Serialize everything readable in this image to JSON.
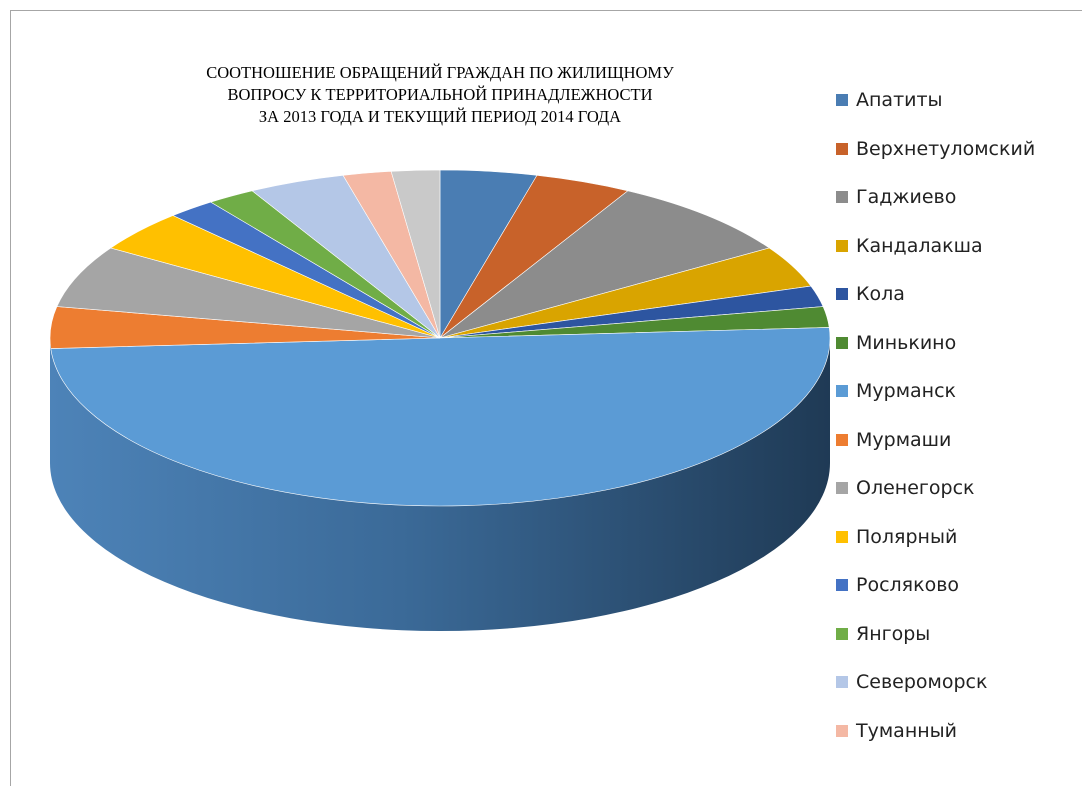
{
  "chart_data": {
    "type": "pie",
    "title_lines": [
      "СООТНОШЕНИЕ ОБРАЩЕНИЙ ГРАЖДАН ПО ЖИЛИЩНОМУ",
      "ВОПРОСУ К ТЕРРИТОРИАЛЬНОЙ ПРИНАДЛЕЖНОСТИ",
      "ЗА 2013 ГОДА И ТЕКУЩИЙ ПЕРИОД 2014 ГОДА"
    ],
    "legend_position": "right",
    "slices": [
      {
        "name": "Апатиты",
        "value": 4,
        "color": "#4a7db3"
      },
      {
        "name": "Верхнетуломский",
        "value": 4,
        "color": "#c8622a"
      },
      {
        "name": "Гаджиево",
        "value": 8,
        "color": "#8c8c8c"
      },
      {
        "name": "Кандалакша",
        "value": 4,
        "color": "#d9a400"
      },
      {
        "name": "Кола",
        "value": 2,
        "color": "#2d55a0"
      },
      {
        "name": "Минькино",
        "value": 2,
        "color": "#4f8a32"
      },
      {
        "name": "Мурманск",
        "value": 50,
        "color": "#5b9bd5"
      },
      {
        "name": "Мурмаши",
        "value": 4,
        "color": "#ed7d31"
      },
      {
        "name": "Оленегорск",
        "value": 6,
        "color": "#a5a5a5"
      },
      {
        "name": "Полярный",
        "value": 4,
        "color": "#ffc000"
      },
      {
        "name": "Росляково",
        "value": 2,
        "color": "#4472c4"
      },
      {
        "name": "Янгоры",
        "value": 2,
        "color": "#70ad47"
      },
      {
        "name": "Североморск",
        "value": 4,
        "color": "#b4c7e7"
      },
      {
        "name": "Туманный",
        "value": 2,
        "color": "#f4b8a4"
      },
      {
        "name": "",
        "value": 2,
        "color": "#c9c9c9"
      }
    ]
  }
}
